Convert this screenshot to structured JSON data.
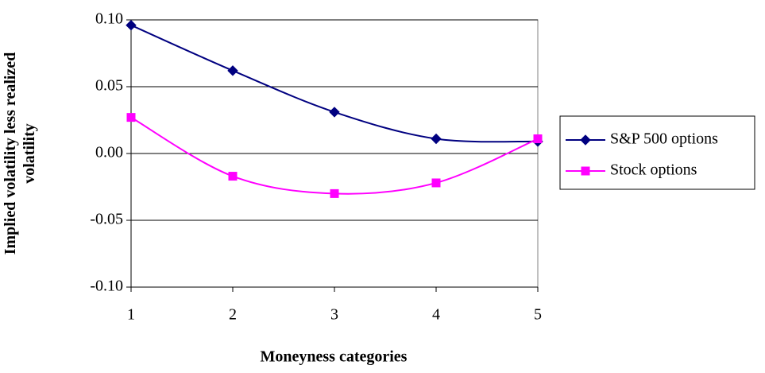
{
  "chart_data": {
    "type": "line",
    "x_label": "Moneyness categories",
    "y_label": "Implied volatility less realized volatility",
    "x": [
      1,
      2,
      3,
      4,
      5
    ],
    "xlim": [
      1,
      5
    ],
    "xticks": [
      1,
      2,
      3,
      4,
      5
    ],
    "ylim": [
      -0.1,
      0.1
    ],
    "yticks": [
      {
        "value": 0.1,
        "label": "0.10"
      },
      {
        "value": 0.05,
        "label": "0.05"
      },
      {
        "value": 0,
        "label": "0.00"
      },
      {
        "value": -0.05,
        "label": "-0.05"
      },
      {
        "value": -0.1,
        "label": "-0.10"
      }
    ],
    "grid": true,
    "smooth": true,
    "legend": "right",
    "series": [
      {
        "name": "S&P 500 options",
        "color": "#000080",
        "marker": "diamond",
        "values": [
          0.096,
          0.062,
          0.031,
          0.011,
          0.009
        ]
      },
      {
        "name": "Stock options",
        "color": "#ff00ff",
        "marker": "square",
        "values": [
          0.027,
          -0.017,
          -0.03,
          -0.022,
          0.011
        ]
      }
    ]
  }
}
